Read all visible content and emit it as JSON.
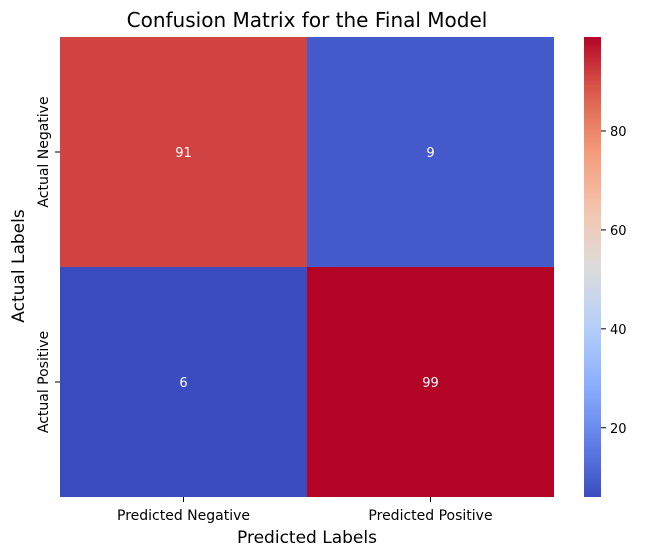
{
  "chart_data": {
    "type": "heatmap",
    "title": "Confusion Matrix for the Final Model",
    "xlabel": "Predicted Labels",
    "ylabel": "Actual Labels",
    "x_categories": [
      "Predicted Negative",
      "Predicted Positive"
    ],
    "y_categories": [
      "Actual Negative",
      "Actual Positive"
    ],
    "values": [
      [
        91,
        9
      ],
      [
        6,
        99
      ]
    ],
    "colormap": "coolwarm",
    "color_range": [
      6,
      99
    ],
    "colorbar_ticks": [
      20,
      40,
      60,
      80
    ],
    "colors": {
      "low": "#3b4cc0",
      "mid": "#dddcdc",
      "high": "#b40426"
    }
  }
}
